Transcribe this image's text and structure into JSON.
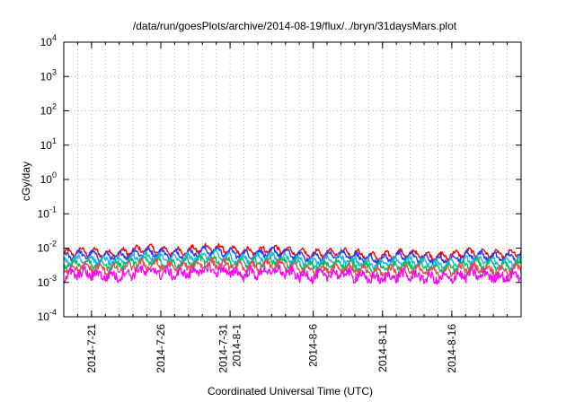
{
  "chart_data": {
    "type": "line",
    "title": "/data/run/goesPlots/archive/2014-08-19/flux/../bryn/31daysMars.plot",
    "xlabel": "Coordinated Universal Time (UTC)",
    "ylabel": "cGy/day",
    "y_scale": "log",
    "ylim": [
      0.0001,
      10000
    ],
    "xlim": [
      "2014-07-19",
      "2014-08-21"
    ],
    "grid": true,
    "y_ticks": [
      {
        "base": "10",
        "exp": "-4",
        "value": 0.0001
      },
      {
        "base": "10",
        "exp": "-3",
        "value": 0.001
      },
      {
        "base": "10",
        "exp": "-2",
        "value": 0.01
      },
      {
        "base": "10",
        "exp": "-1",
        "value": 0.1
      },
      {
        "base": "10",
        "exp": "0",
        "value": 1
      },
      {
        "base": "10",
        "exp": "1",
        "value": 10
      },
      {
        "base": "10",
        "exp": "2",
        "value": 100
      },
      {
        "base": "10",
        "exp": "3",
        "value": 1000
      },
      {
        "base": "10",
        "exp": "4",
        "value": 10000
      }
    ],
    "x_ticks": [
      {
        "date": "2014-07-21",
        "lines": [
          "2014-7-21"
        ]
      },
      {
        "date": "2014-07-26",
        "lines": [
          "2014-7-26"
        ]
      },
      {
        "date": "2014-07-31",
        "lines": [
          "2014-7-31",
          "2014-8-1"
        ]
      },
      {
        "date": "2014-08-06",
        "lines": [
          "2014-8-6"
        ]
      },
      {
        "date": "2014-08-11",
        "lines": [
          "2014-8-11"
        ]
      },
      {
        "date": "2014-08-16",
        "lines": [
          "2014-8-16"
        ]
      }
    ],
    "series": [
      {
        "color": "#ff0000",
        "level": 0.0075
      },
      {
        "color": "#1f3dff",
        "level": 0.0062
      },
      {
        "color": "#18b8e8",
        "level": 0.0045
      },
      {
        "color": "#00c060",
        "level": 0.0034
      },
      {
        "color": "#e05050",
        "level": 0.0026
      },
      {
        "color": "#ff00ff",
        "level": 0.0017
      }
    ]
  }
}
